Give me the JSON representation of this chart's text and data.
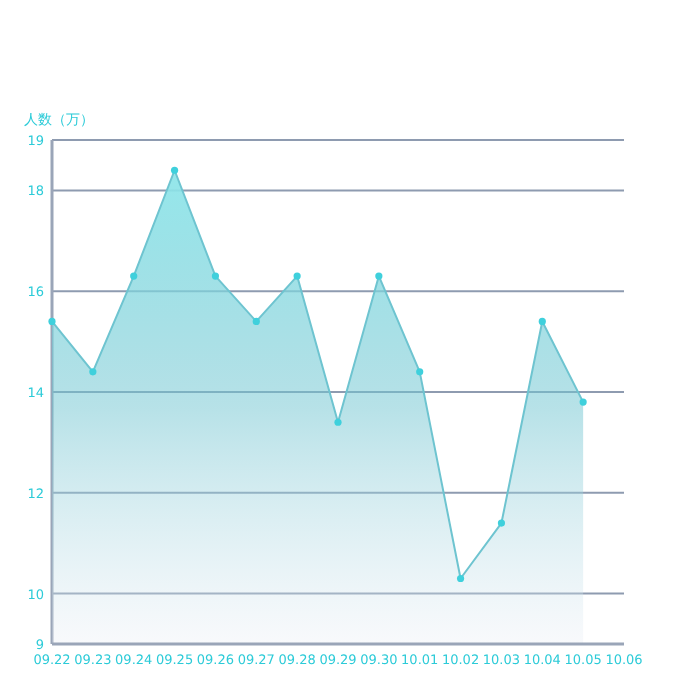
{
  "chart_data": {
    "type": "area",
    "ylabel": "人数（万）",
    "categories": [
      "09.22",
      "09.23",
      "09.24",
      "09.25",
      "09.26",
      "09.27",
      "09.28",
      "09.29",
      "09.30",
      "10.01",
      "10.02",
      "10.03",
      "10.04",
      "10.05",
      "10.06"
    ],
    "series": [
      {
        "color": "#6ec4d0",
        "values": [
          15.4,
          14.4,
          16.3,
          18.4,
          16.3,
          15.4,
          16.3,
          13.4,
          16.3,
          14.4,
          10.3,
          11.4,
          15.4,
          13.8,
          null
        ]
      }
    ],
    "ylim": [
      9,
      19
    ],
    "yticks": [
      9,
      10,
      12,
      14,
      16,
      18,
      19
    ],
    "grid": "y",
    "marker": "circle"
  }
}
